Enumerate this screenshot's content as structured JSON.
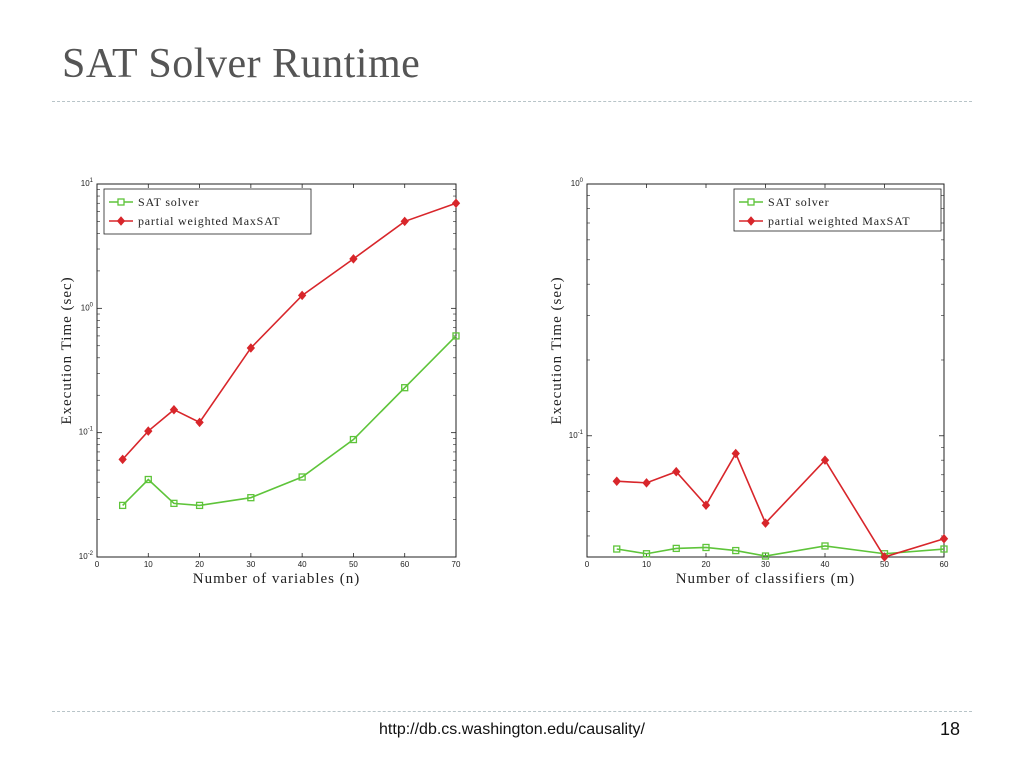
{
  "slide": {
    "title": "SAT Solver Runtime",
    "footer_url": "http://db.cs.washington.edu/causality/",
    "page_number": "18"
  },
  "colors": {
    "sat_solver": "#5ec43a",
    "maxsat": "#d8262b",
    "title": "#555555",
    "rule": "#b8c4c8"
  },
  "chart_data": [
    {
      "type": "line",
      "xlabel": "Number of variables (n)",
      "ylabel": "Execution Time (sec)",
      "xlim": [
        0,
        70
      ],
      "ylim": [
        0.01,
        10
      ],
      "yscale": "log",
      "xticks": [
        0,
        10,
        20,
        30,
        40,
        50,
        60,
        70
      ],
      "yticks": [
        {
          "value": 0.01,
          "base": "10",
          "exp": "-2"
        },
        {
          "value": 0.1,
          "base": "10",
          "exp": "-1"
        },
        {
          "value": 1,
          "base": "10",
          "exp": "0"
        },
        {
          "value": 10,
          "base": "10",
          "exp": "1"
        }
      ],
      "grid": false,
      "legend_position": "top-left",
      "series": [
        {
          "name": "SAT solver",
          "color": "#5ec43a",
          "marker": "square",
          "x": [
            5,
            10,
            15,
            20,
            30,
            40,
            50,
            60,
            70
          ],
          "y": [
            0.026,
            0.042,
            0.027,
            0.026,
            0.03,
            0.044,
            0.088,
            0.23,
            0.6
          ]
        },
        {
          "name": "partial weighted MaxSAT",
          "color": "#d8262b",
          "marker": "diamond",
          "x": [
            5,
            10,
            15,
            20,
            30,
            40,
            50,
            60,
            70
          ],
          "y": [
            0.061,
            0.103,
            0.153,
            0.121,
            0.48,
            1.27,
            2.5,
            5.0,
            7.0
          ]
        }
      ]
    },
    {
      "type": "line",
      "xlabel": "Number of classifiers (m)",
      "ylabel": "Execution Time (sec)",
      "xlim": [
        0,
        60
      ],
      "ylim": [
        0.033,
        1
      ],
      "yscale": "log",
      "xticks": [
        0,
        10,
        20,
        30,
        40,
        50,
        60
      ],
      "yticks": [
        {
          "value": 0.1,
          "base": "10",
          "exp": "-1"
        },
        {
          "value": 1,
          "base": "10",
          "exp": "0"
        }
      ],
      "grid": false,
      "legend_position": "top-right",
      "series": [
        {
          "name": "SAT solver",
          "color": "#5ec43a",
          "marker": "square",
          "x": [
            5,
            10,
            15,
            20,
            25,
            30,
            40,
            50,
            60
          ],
          "y": [
            0.0355,
            0.034,
            0.0357,
            0.036,
            0.035,
            0.0333,
            0.0365,
            0.034,
            0.0355
          ]
        },
        {
          "name": "partial weighted MaxSAT",
          "color": "#d8262b",
          "marker": "diamond",
          "x": [
            5,
            10,
            15,
            20,
            25,
            30,
            40,
            50,
            60
          ],
          "y": [
            0.066,
            0.065,
            0.072,
            0.053,
            0.085,
            0.045,
            0.08,
            0.033,
            0.039
          ]
        }
      ]
    }
  ]
}
